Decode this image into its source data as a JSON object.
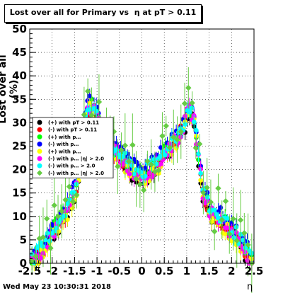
{
  "title": "Lost over all for Primary vs  η at pT > 0.11",
  "footer": "Wed May 23 10:30:31 2018",
  "chart_data": {
    "type": "scatter",
    "xlabel": "η",
    "ylabel": "Lost over all (%)",
    "xlim": [
      -2.5,
      2.5
    ],
    "ylim": [
      0,
      50
    ],
    "x_ticks": [
      "-2.5",
      "-2",
      "-1.5",
      "-1",
      "-0.5",
      "0",
      "0.5",
      "1",
      "1.5",
      "2",
      "2.5"
    ],
    "y_ticks": [
      "0",
      "5",
      "10",
      "15",
      "20",
      "25",
      "30",
      "35",
      "40",
      "45",
      "50"
    ],
    "grid": true,
    "legend_position": "left",
    "series": [
      {
        "name": "(+) with pT > 0.11",
        "color": "#000000",
        "marker": "circle"
      },
      {
        "name": "(-) with pT > 0.11",
        "color": "#ff0000",
        "marker": "circle"
      },
      {
        "name": "(+) with p…",
        "color": "#00ff00",
        "marker": "circle"
      },
      {
        "name": "(-) with p…",
        "color": "#0000ff",
        "marker": "circle"
      },
      {
        "name": "(+) with p…",
        "color": "#ffff00",
        "marker": "circle"
      },
      {
        "name": "(-) with p… |η| > 2.0",
        "color": "#ff00ff",
        "marker": "circle"
      },
      {
        "name": "(-) with p… > 2.0",
        "color": "#00ffff",
        "marker": "circle"
      },
      {
        "name": "(-) with p… |η| > 2.0",
        "color": "#66cc44",
        "marker": "diamond"
      }
    ],
    "profile": {
      "x": [
        -2.45,
        -2.3,
        -2.1,
        -1.9,
        -1.7,
        -1.55,
        -1.45,
        -1.35,
        -1.25,
        -1.15,
        -1.05,
        -0.95,
        -0.8,
        -0.6,
        -0.4,
        -0.2,
        0.0,
        0.2,
        0.4,
        0.6,
        0.8,
        0.95,
        1.05,
        1.15,
        1.25,
        1.35,
        1.45,
        1.55,
        1.7,
        1.9,
        2.1,
        2.3,
        2.45
      ],
      "y": [
        0.5,
        2,
        5,
        8,
        11,
        14,
        17,
        24,
        32,
        34,
        33,
        30,
        26,
        24,
        22,
        20,
        19,
        20,
        22,
        25,
        27,
        30,
        33,
        32,
        24,
        16,
        13,
        11,
        10,
        8,
        6,
        3,
        0.5
      ]
    }
  }
}
